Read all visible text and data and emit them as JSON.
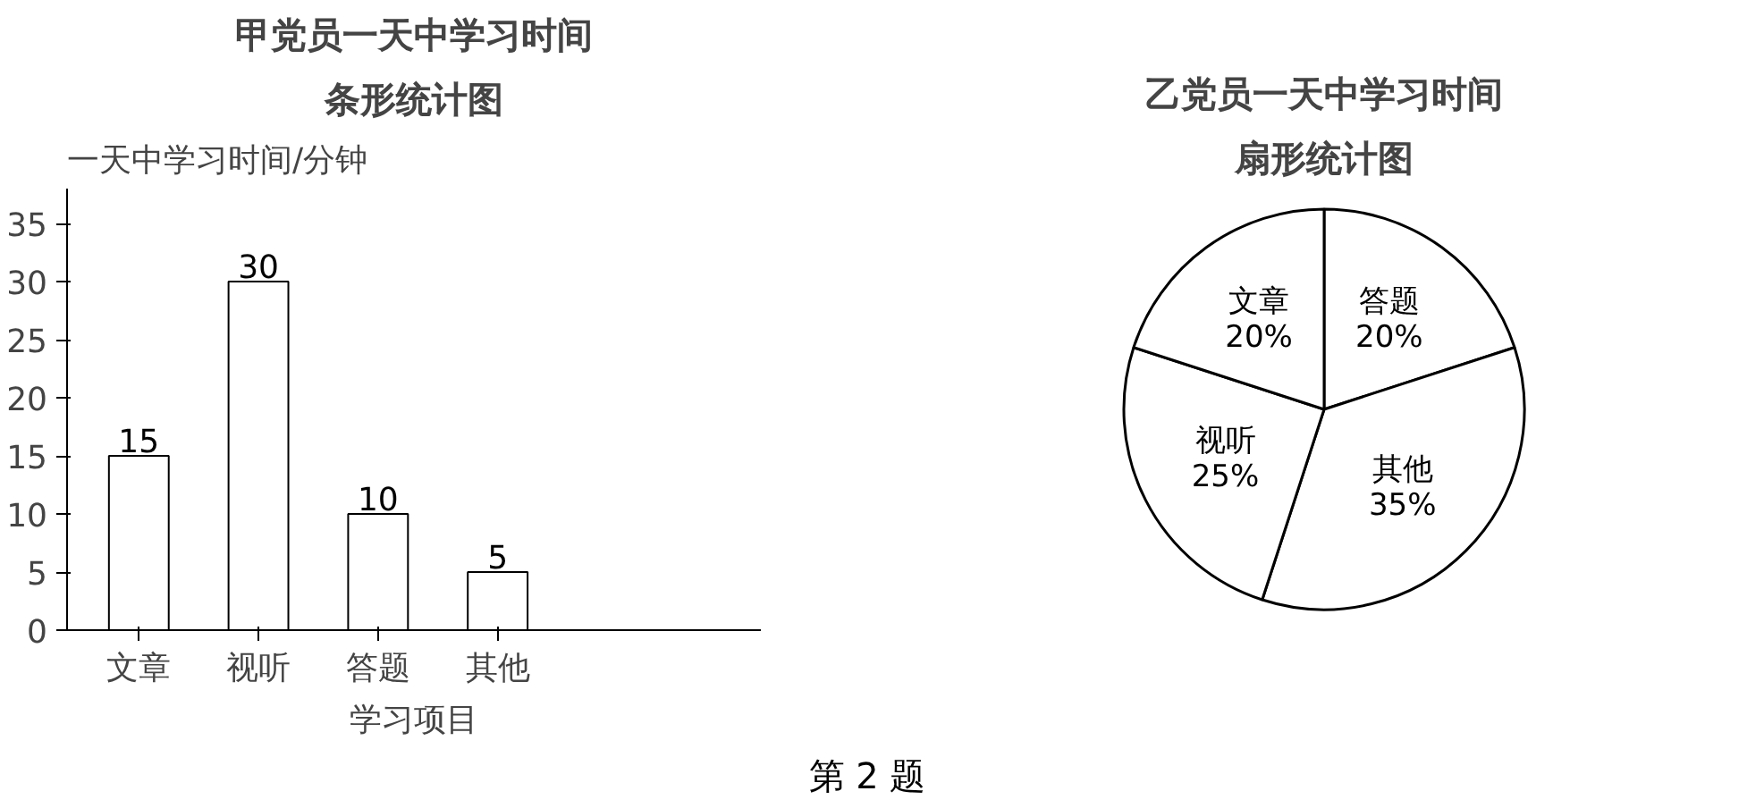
{
  "chart_data": [
    {
      "type": "bar",
      "title": "甲党员一天中学习时间",
      "subtitle": "条形统计图",
      "ylabel": "一天中学习时间/分钟",
      "xlabel": "学习项目",
      "categories": [
        "文章",
        "视听",
        "答题",
        "其他"
      ],
      "values": [
        15,
        30,
        10,
        5
      ],
      "color": "#ffffff",
      "ylim": [
        0,
        38
      ],
      "yticks": [
        0,
        5,
        10,
        15,
        20,
        25,
        30,
        35
      ],
      "grid": false,
      "data_labels": true,
      "annotations": [
        "第 2 题"
      ]
    },
    {
      "type": "pie",
      "title": "乙党员一天中学习时间",
      "subtitle": "扇形统计图",
      "categories": [
        "答题",
        "其他",
        "视听",
        "文章"
      ],
      "values": [
        20,
        35,
        25,
        20
      ],
      "colors": [
        "#ffffff",
        "#ffffff",
        "#ffffff",
        "#ffffff"
      ],
      "value_labels": [
        "20%",
        "35%",
        "25%",
        "20%"
      ]
    }
  ]
}
